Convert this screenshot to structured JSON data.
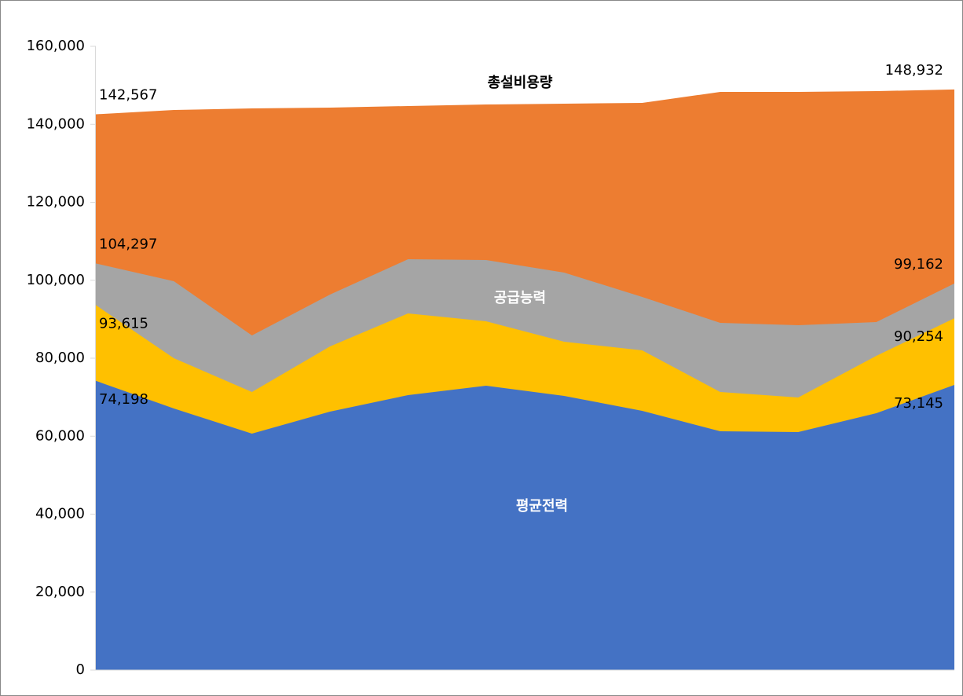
{
  "chart_data": {
    "type": "area",
    "categories": [
      null,
      null,
      null,
      null,
      null,
      null,
      null,
      null,
      null,
      null,
      null,
      null
    ],
    "series": [
      {
        "name": "총설비용량",
        "color": "#ed7d31",
        "values": [
          142567,
          143680,
          144080,
          144290,
          144690,
          145090,
          145290,
          145490,
          148310,
          148310,
          148510,
          148932
        ],
        "value_labels": [
          "142,567",
          null,
          null,
          null,
          null,
          null,
          null,
          null,
          null,
          null,
          null,
          "148,932"
        ]
      },
      {
        "name": "공급능력",
        "color": "#a5a5a5",
        "values": [
          104297,
          99750,
          85840,
          96320,
          105390,
          105190,
          101970,
          95720,
          89070,
          88460,
          89270,
          99162
        ],
        "value_labels": [
          "104,297",
          null,
          null,
          null,
          null,
          null,
          null,
          null,
          null,
          null,
          null,
          "99,162"
        ]
      },
      {
        "color": "#ffc000",
        "values": [
          93615,
          80000,
          71340,
          83020,
          91490,
          89470,
          84230,
          82010,
          71340,
          69920,
          80600,
          90254
        ],
        "value_labels": [
          "93,615",
          null,
          null,
          null,
          null,
          null,
          null,
          null,
          null,
          null,
          null,
          "90,254"
        ]
      },
      {
        "name": "평균전력",
        "color": "#4472c4",
        "values": [
          74198,
          67100,
          60650,
          66300,
          70530,
          72950,
          70330,
          66500,
          61260,
          61060,
          65900,
          73145
        ],
        "value_labels": [
          "74,198",
          null,
          null,
          null,
          null,
          null,
          null,
          null,
          null,
          null,
          null,
          "73,145"
        ]
      }
    ],
    "ylim": [
      0,
      160000
    ],
    "yticks": [
      0,
      {
        "value": 20000,
        "label": "20,000"
      },
      {
        "value": 40000,
        "label": "40,000"
      },
      {
        "value": 60000,
        "label": "60,000"
      },
      {
        "value": 80000,
        "label": "80,000"
      },
      {
        "value": 100000,
        "label": "100,000"
      },
      {
        "value": 120000,
        "label": "120,000"
      },
      {
        "value": 140000,
        "label": "140,000"
      },
      {
        "value": 160000,
        "label": "160,000"
      }
    ],
    "grid": false
  }
}
